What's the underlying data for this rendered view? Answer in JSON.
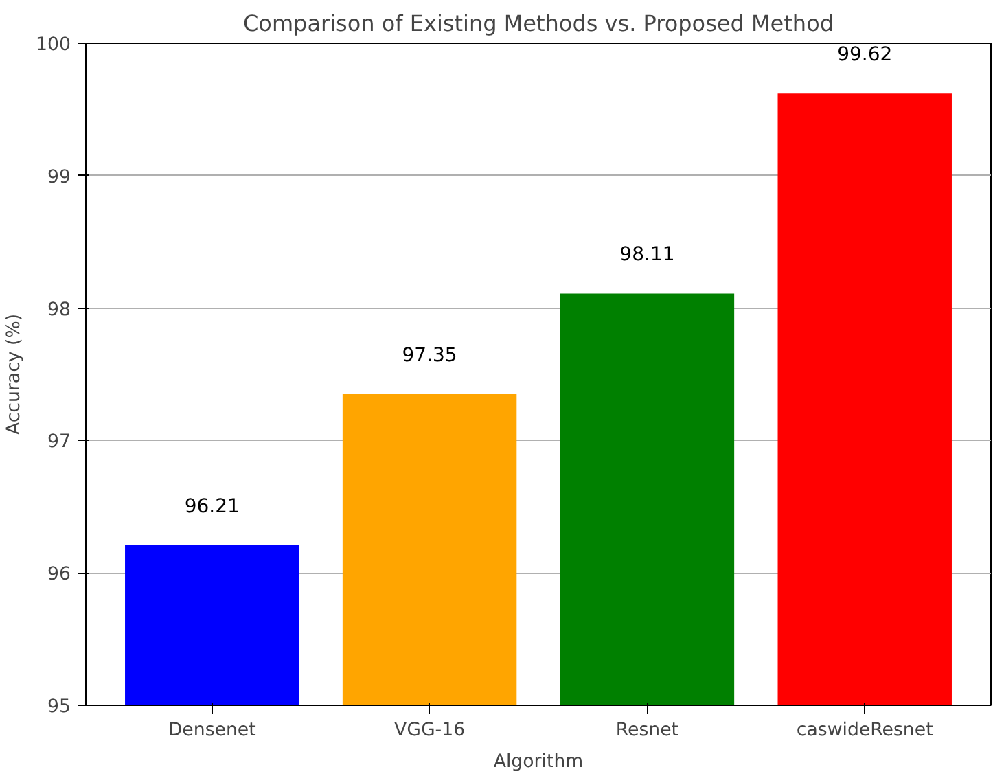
{
  "chart_data": {
    "type": "bar",
    "title": "Comparison of Existing Methods vs. Proposed Method",
    "xlabel": "Algorithm",
    "ylabel": "Accuracy (%)",
    "categories": [
      "Densenet",
      "VGG-16",
      "Resnet",
      "caswideResnet"
    ],
    "values": [
      96.21,
      97.35,
      98.11,
      99.62
    ],
    "colors": [
      "#0000ff",
      "#ffa500",
      "#008000",
      "#ff0000"
    ],
    "ylim": [
      95,
      100
    ],
    "yticks": [
      95,
      96,
      97,
      98,
      99,
      100
    ],
    "grid": "y",
    "data_labels": true
  }
}
